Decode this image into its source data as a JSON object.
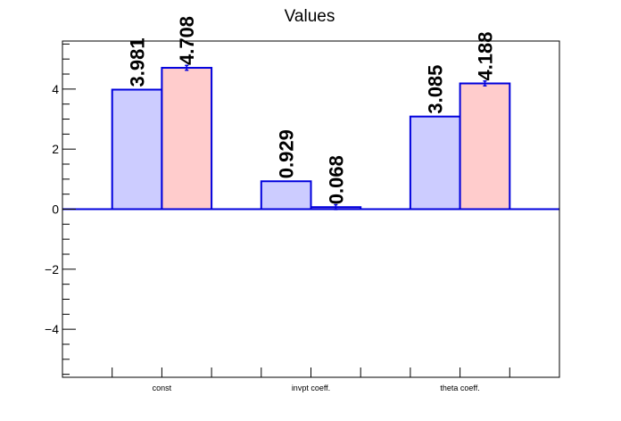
{
  "chart_data": {
    "type": "bar",
    "title": "Values",
    "categories": [
      "const",
      "invpt coeff.",
      "theta coeff."
    ],
    "series": [
      {
        "values": [
          3.981,
          0.929,
          3.085
        ],
        "errors": [
          0,
          0,
          0
        ],
        "color": "#ccccff"
      },
      {
        "values": [
          4.708,
          0.068,
          4.188
        ],
        "errors": [
          0.08,
          0.08,
          0.08
        ],
        "color": "#ffcccc"
      }
    ],
    "data_labels": [
      [
        "3.981",
        "0.929",
        "3.085"
      ],
      [
        "4.708",
        "0.068",
        "4.188"
      ]
    ],
    "bar_edge_color": "#0000dd",
    "ylim": [
      -5.6,
      5.6
    ],
    "yticks": [
      -4,
      -2,
      0,
      2,
      4
    ],
    "ytick_labels": [
      "−4",
      "−2",
      "0",
      "2",
      "4"
    ],
    "ylabel": "",
    "xlabel": "",
    "grid": false,
    "legend": "none"
  }
}
